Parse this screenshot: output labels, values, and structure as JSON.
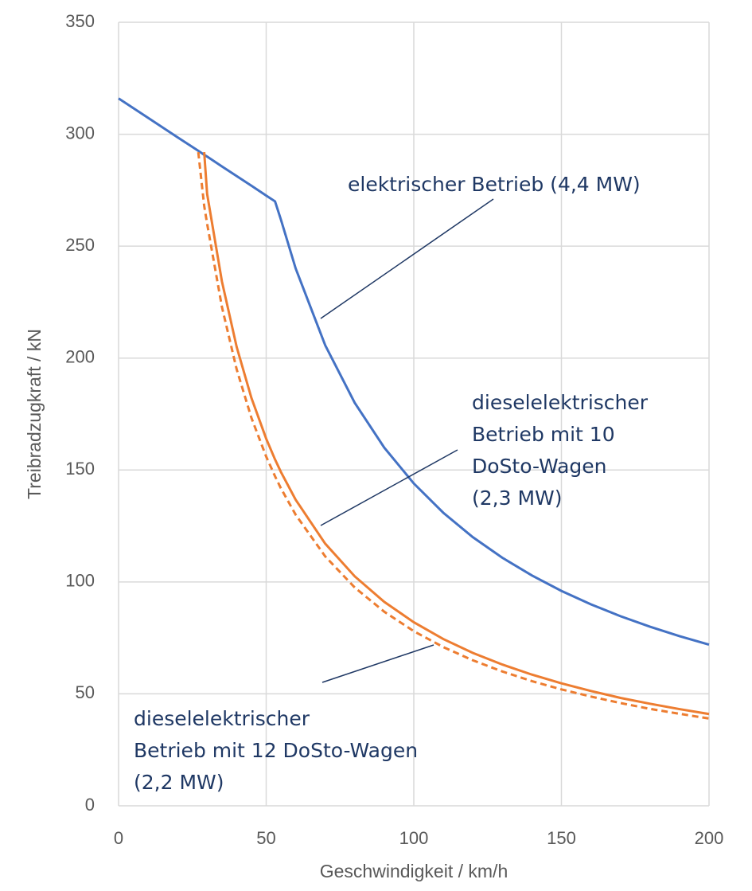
{
  "chart_data": {
    "type": "line",
    "x_label": "Geschwindigkeit / km/h",
    "y_label": "Treibradzugkraft / kN",
    "x": [
      0,
      10,
      20,
      27,
      29,
      30,
      35,
      40,
      45,
      50,
      53,
      55,
      60,
      70,
      80,
      90,
      100,
      110,
      120,
      130,
      140,
      150,
      160,
      170,
      180,
      190,
      200
    ],
    "series": [
      {
        "color": "#4472c4",
        "dash": false,
        "values": [
          316,
          307.3,
          298.6,
          292.6,
          290.8,
          290,
          285.6,
          281.3,
          277,
          272.6,
          270,
          261.8,
          240,
          205.7,
          180,
          160,
          144,
          130.9,
          120,
          110.8,
          102.9,
          96,
          90,
          84.7,
          80,
          75.8,
          72
        ]
      },
      {
        "color": "#ed7d31",
        "dash": false,
        "values": [
          null,
          null,
          null,
          null,
          292,
          273.3,
          234.3,
          205,
          182.2,
          164,
          154.7,
          149.1,
          136.7,
          117.1,
          102.5,
          91.1,
          82,
          74.5,
          68.3,
          63.1,
          58.6,
          54.7,
          51.3,
          48.2,
          45.6,
          43.2,
          41
        ]
      },
      {
        "color": "#ed7d31",
        "dash": true,
        "values": [
          null,
          null,
          null,
          292,
          268,
          260,
          222.9,
          195,
          173.3,
          156,
          147.2,
          141.8,
          130,
          111.4,
          97.5,
          86.7,
          78,
          70.9,
          65,
          60,
          55.7,
          52,
          48.8,
          45.9,
          43.3,
          41.1,
          39
        ]
      }
    ],
    "annotations": [
      {
        "lines": [
          "elektrischer Betrieb (4,4 MW)"
        ]
      },
      {
        "lines": [
          "dieselelektrischer",
          "Betrieb mit 10",
          "DoSto-Wagen",
          "(2,3 MW)"
        ]
      },
      {
        "lines": [
          "dieselelektrischer",
          "Betrieb mit 12 DoSto-Wagen",
          "(2,2 MW)"
        ]
      }
    ],
    "xlim": [
      0,
      200
    ],
    "xticks": [
      0,
      50,
      100,
      150,
      200
    ],
    "ylim": [
      0,
      350
    ],
    "yticks": [
      0,
      50,
      100,
      150,
      200,
      250,
      300,
      350
    ],
    "grid": true
  }
}
